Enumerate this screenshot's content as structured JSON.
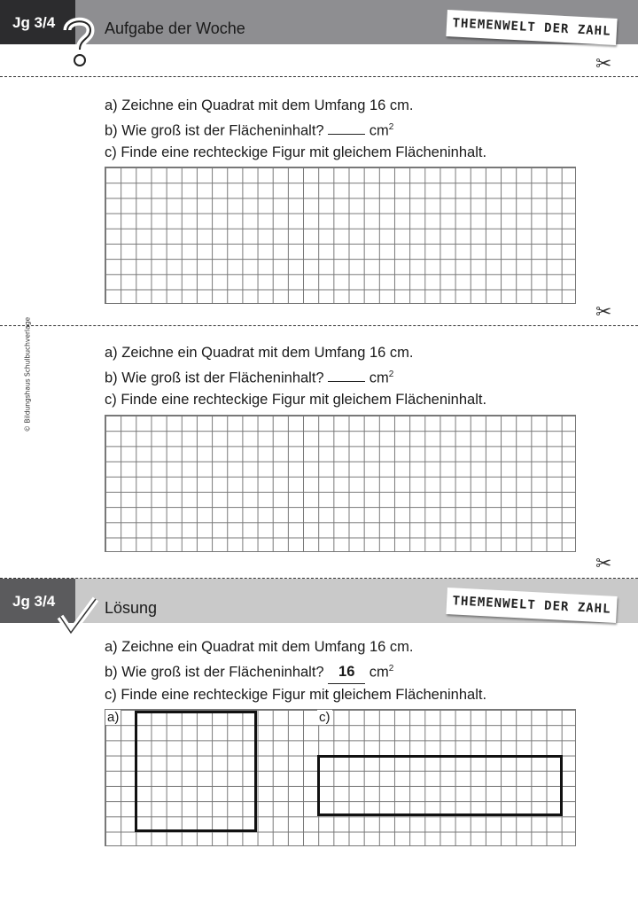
{
  "header": {
    "grade": "Jg 3/4",
    "title": "Aufgabe der Woche",
    "stamp": "THEMENWELT DER ZAHL",
    "icon": "question-mark-icon"
  },
  "task": {
    "a": "a) Zeichne ein Quadrat mit dem Umfang 16 cm.",
    "b": "b) Wie groß ist der Flächeninhalt?",
    "b_blank": "",
    "unit": "cm",
    "unit_exp": "2",
    "c": "c) Finde eine rechteckige Figur mit gleichem Flächeninhalt."
  },
  "copyright": "© Bildungshaus Schulbuchverlage",
  "solution": {
    "grade": "Jg 3/4",
    "title": "Lösung",
    "stamp": "THEMENWELT DER ZAHL",
    "icon": "checkmark-icon",
    "b_answer": "16",
    "label_a": "a)",
    "label_c": "c)"
  },
  "scissors": "✂"
}
